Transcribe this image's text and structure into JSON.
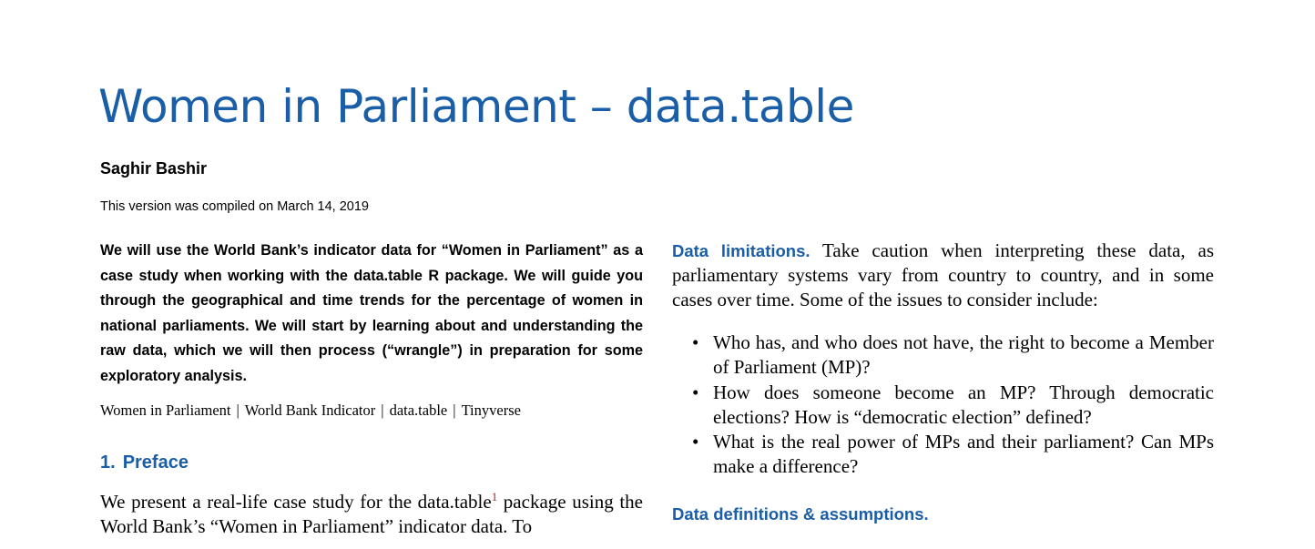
{
  "title": "Women in Parliament – data.table",
  "author": "Saghir Bashir",
  "compiled_note": "This version was compiled on March 14, 2019",
  "abstract": "We will use the World Bank’s indicator data for “Women in Parliament” as a case study when working with the data.table R package.  We will guide you through the geographical and time trends for the percentage of women in national parliaments.  We will start by learning about and understanding the raw data, which we will then process (“wrangle”) in preparation for some exploratory analysis.",
  "keywords": [
    "Women in Parliament",
    "World Bank Indicator",
    "data.table",
    "Tinyverse"
  ],
  "keyword_separator": "|",
  "section1": {
    "number": "1.",
    "title": "Preface",
    "text_before_note": "We present a real-life case study for the data.table",
    "footnote_mark": "1",
    "text_after_note": " package using the World Bank’s “Women in Parliament” indicator data.  To"
  },
  "limitations": {
    "heading": "Data limitations.",
    "text": " Take caution when interpreting these data, as parliamentary systems vary from country to country, and in some cases over time.  Some of the issues to consider include:",
    "bullet_glyph": "•",
    "bullets": [
      "Who has, and who does not have, the right to become a Member of Parliament (MP)?",
      "How does someone become an MP? Through democratic elections? How is “democratic election” defined?",
      "What is the real power of MPs and their parliament?  Can MPs make a difference?"
    ]
  },
  "definitions_heading": "Data definitions & assumptions."
}
